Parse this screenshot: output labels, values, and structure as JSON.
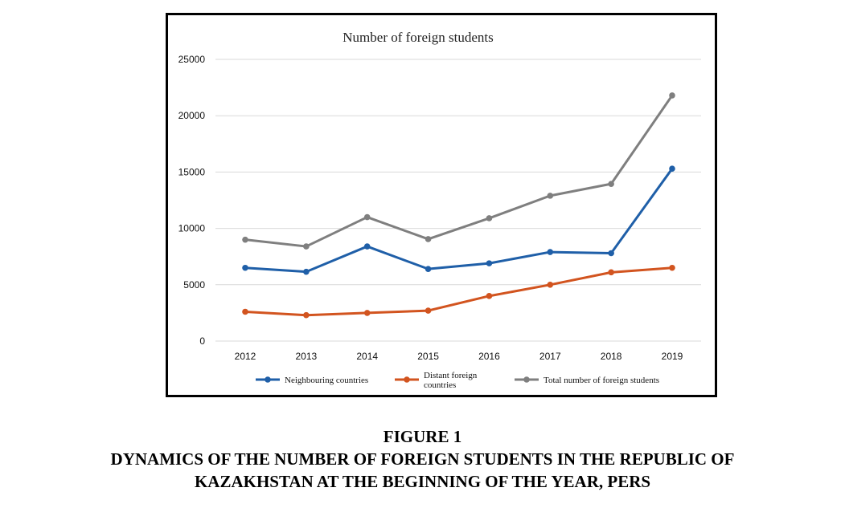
{
  "chart_data": {
    "type": "line",
    "title": "Number of foreign students",
    "categories": [
      "2012",
      "2013",
      "2014",
      "2015",
      "2016",
      "2017",
      "2018",
      "2019"
    ],
    "y_ticks": [
      "0",
      "5000",
      "10000",
      "15000",
      "20000",
      "25000"
    ],
    "ylim": [
      0,
      25000
    ],
    "grid": true,
    "legend_position": "bottom",
    "series": [
      {
        "name": "Neighbouring countries",
        "legend_lines": [
          "Neighbouring countries"
        ],
        "color": "#1f5fa8",
        "values": [
          6500,
          6150,
          8400,
          6400,
          6900,
          7900,
          7800,
          15300
        ]
      },
      {
        "name": "Distant foreign countries",
        "legend_lines": [
          "Distant foreign",
          "countries"
        ],
        "color": "#d2541f",
        "values": [
          2600,
          2300,
          2500,
          2700,
          4000,
          5000,
          6100,
          6500
        ]
      },
      {
        "name": "Total number of foreign students",
        "legend_lines": [
          "Total number of foreign students"
        ],
        "color": "#7f7f7f",
        "values": [
          9000,
          8400,
          11000,
          9050,
          10900,
          12900,
          13950,
          21800
        ]
      }
    ]
  },
  "caption": {
    "figure_label": "FIGURE 1",
    "line1": "DYNAMICS OF THE NUMBER OF FOREIGN STUDENTS IN THE REPUBLIC OF",
    "line2": "KAZAKHSTAN AT THE BEGINNING OF THE YEAR, PERS"
  }
}
